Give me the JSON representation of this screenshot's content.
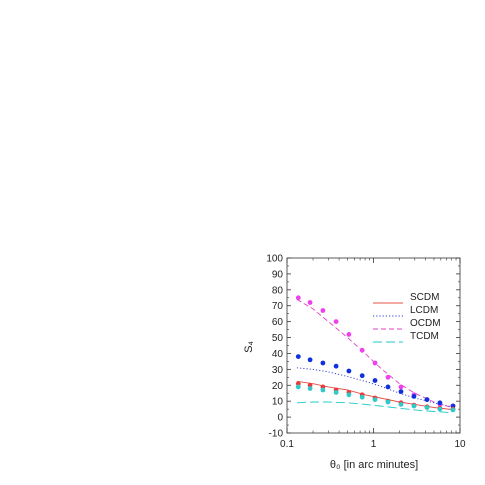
{
  "chart_data": {
    "type": "line",
    "title": "",
    "xlabel": "θ₀ [in arc minutes]",
    "ylabel": "S₄",
    "xscale": "log",
    "xlim": [
      0.1,
      10
    ],
    "ylim": [
      -10,
      100
    ],
    "x_ticks": [
      0.1,
      1,
      10
    ],
    "x_tick_labels": [
      "0.1",
      "1",
      "10"
    ],
    "y_ticks": [
      -10,
      0,
      10,
      20,
      30,
      40,
      50,
      60,
      70,
      80,
      90,
      100
    ],
    "y_tick_labels": [
      "-10",
      "0",
      "10",
      "20",
      "30",
      "40",
      "50",
      "60",
      "70",
      "80",
      "90",
      "100"
    ],
    "legend_position": "right",
    "series": [
      {
        "name": "SCDM",
        "style": "solid",
        "color": "#e8504a",
        "x": [
          0.13,
          0.2,
          0.3,
          0.5,
          0.8,
          1.2,
          2,
          3,
          5,
          8
        ],
        "y": [
          22.5,
          21,
          19,
          17,
          14,
          12,
          9.5,
          8,
          6,
          4.8
        ]
      },
      {
        "name": "LCDM",
        "style": "dotted",
        "color": "#2a3ad8",
        "x": [
          0.13,
          0.2,
          0.3,
          0.5,
          0.8,
          1.2,
          2,
          3,
          5,
          8
        ],
        "y": [
          31,
          30,
          28.5,
          25.5,
          22.5,
          19.5,
          15,
          12,
          9,
          6.5
        ]
      },
      {
        "name": "OCDM",
        "style": "dashed",
        "color": "#e040c8",
        "x": [
          0.13,
          0.2,
          0.3,
          0.5,
          0.8,
          1.2,
          2,
          3,
          5,
          8
        ],
        "y": [
          74,
          68,
          60,
          50,
          40,
          31,
          21,
          15,
          9.5,
          6
        ]
      },
      {
        "name": "TCDM",
        "style": "long-dash",
        "color": "#20c8c8",
        "x": [
          0.13,
          0.2,
          0.3,
          0.5,
          0.8,
          1.2,
          2,
          3,
          5,
          8
        ],
        "y": [
          9,
          9.5,
          9.5,
          9,
          8,
          7,
          5.5,
          4.5,
          3.5,
          2.8
        ]
      }
    ],
    "points": [
      {
        "color": "#ee40ee",
        "x": [
          0.135,
          0.185,
          0.26,
          0.37,
          0.52,
          0.74,
          1.04,
          1.47,
          2.08,
          2.94,
          4.15,
          5.86,
          8.3
        ],
        "y": [
          75,
          72,
          67,
          60,
          52,
          42,
          34,
          25,
          19,
          14,
          11,
          8,
          7
        ]
      },
      {
        "color": "#1030dd",
        "x": [
          0.135,
          0.185,
          0.26,
          0.37,
          0.52,
          0.74,
          1.04,
          1.47,
          2.08,
          2.94,
          4.15,
          5.86,
          8.3
        ],
        "y": [
          38,
          36,
          34,
          32,
          29,
          26,
          23,
          19,
          16,
          13,
          11,
          9,
          7
        ]
      },
      {
        "color": "#e83a3a",
        "x": [
          0.135,
          0.185,
          0.26,
          0.37,
          0.52,
          0.74,
          1.04,
          1.47,
          2.08,
          2.94,
          4.15,
          5.86,
          8.3
        ],
        "y": [
          21,
          20,
          19,
          17,
          15.5,
          14,
          12,
          10,
          9,
          7.5,
          6.5,
          5.5,
          5
        ]
      },
      {
        "color": "#30c8c8",
        "x": [
          0.135,
          0.185,
          0.26,
          0.37,
          0.52,
          0.74,
          1.04,
          1.47,
          2.08,
          2.94,
          4.15,
          5.86,
          8.3
        ],
        "y": [
          19,
          18,
          17,
          15.5,
          14,
          12.5,
          11,
          9.5,
          8,
          7,
          6,
          5,
          4.5
        ]
      }
    ]
  }
}
